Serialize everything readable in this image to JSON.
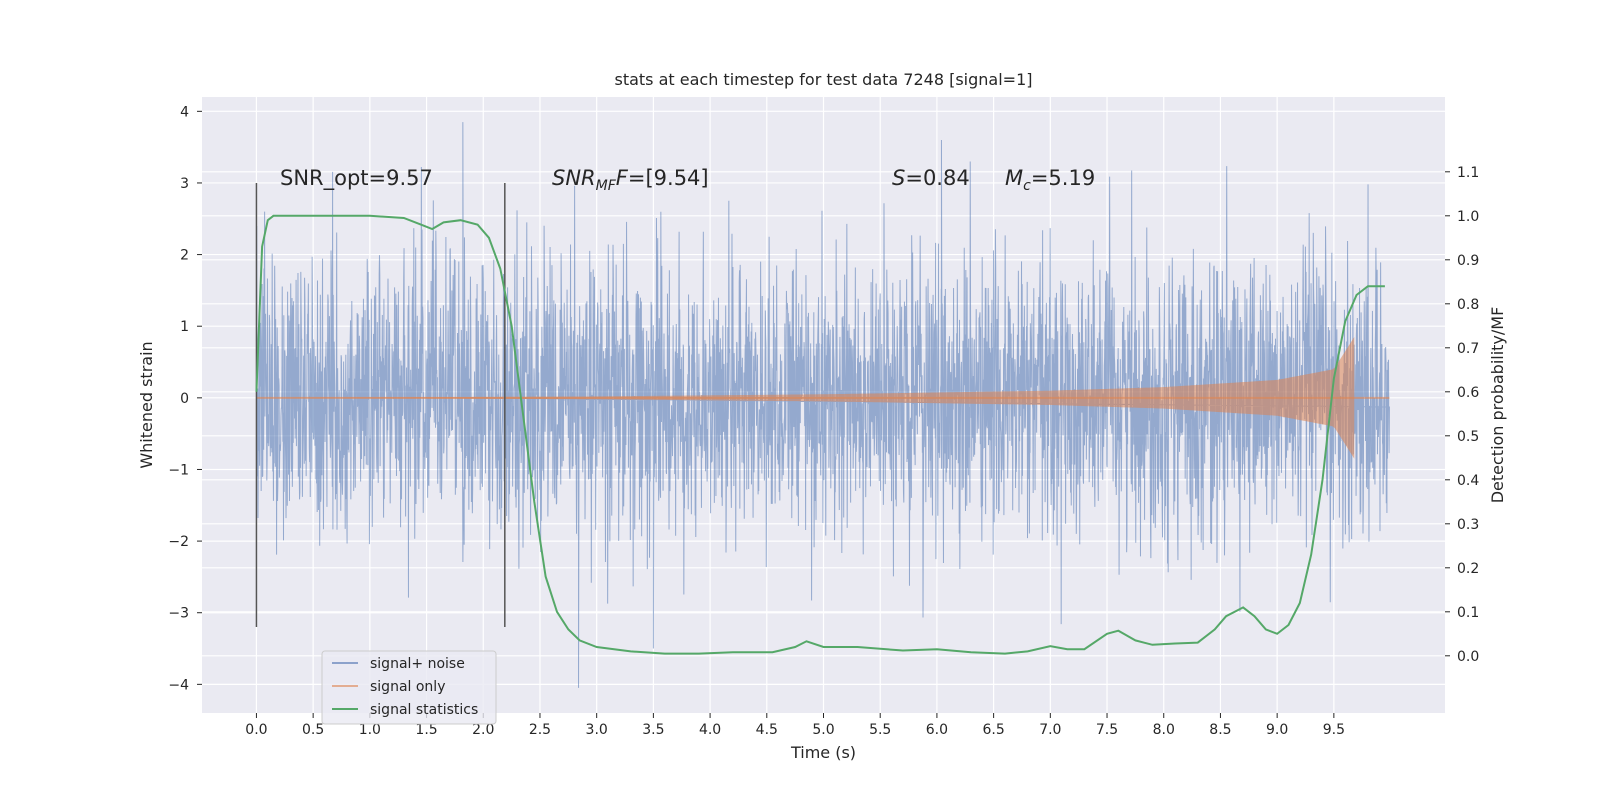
{
  "chart_data": {
    "type": "line",
    "title": "stats at each timestep for test data 7248 [signal=1]",
    "xlabel": "Time (s)",
    "ylabel": "Whitened strain",
    "y2label": "Detection probability/MF",
    "xlim": [
      -0.48,
      10.48
    ],
    "ylim": [
      -4.4,
      4.2
    ],
    "y2lim": [
      -0.13,
      1.27
    ],
    "x_ticks": [
      "0.0",
      "0.5",
      "1.0",
      "1.5",
      "2.0",
      "2.5",
      "3.0",
      "3.5",
      "4.0",
      "4.5",
      "5.0",
      "5.5",
      "6.0",
      "6.5",
      "7.0",
      "7.5",
      "8.0",
      "8.5",
      "9.0",
      "9.5"
    ],
    "y_ticks": [
      "−4",
      "−3",
      "−2",
      "−1",
      "0",
      "1",
      "2",
      "3",
      "4"
    ],
    "y2_ticks": [
      "0.0",
      "0.1",
      "0.2",
      "0.3",
      "0.4",
      "0.5",
      "0.6",
      "0.7",
      "0.8",
      "0.9",
      "1.0",
      "1.1"
    ],
    "grid": true,
    "legend_placement": "lower-left",
    "window_lines_x": [
      0.0,
      2.19
    ],
    "window_lines_ylim": [
      -3.2,
      3.0
    ],
    "annotations": {
      "snr_opt": "SNR_opt=9.57",
      "snr_mf": "SNR_MF=[9.54]",
      "s_value": "S=0.84",
      "mc_value": "M_c=5.19"
    },
    "series": [
      {
        "name": "signal+ noise",
        "color": "#4c72b0",
        "x_range": [
          0.0,
          9.99
        ],
        "envelope_typical": 1.3,
        "extremes": [
          {
            "x": 1.82,
            "y": 3.85
          },
          {
            "x": 2.84,
            "y": -4.05
          },
          {
            "x": 3.5,
            "y": -3.5
          },
          {
            "x": 6.04,
            "y": 3.6
          }
        ]
      },
      {
        "name": "signal only",
        "color": "#dd8452",
        "x_range": [
          0.0,
          9.68
        ],
        "amplitude": {
          "x": [
            0.0,
            3.0,
            5.0,
            7.0,
            8.0,
            9.0,
            9.5,
            9.68
          ],
          "y": [
            0.0,
            0.02,
            0.05,
            0.1,
            0.15,
            0.25,
            0.4,
            0.85
          ]
        }
      },
      {
        "name": "signal statistics",
        "color": "#55a868",
        "x": [
          0.0,
          0.05,
          0.1,
          0.15,
          0.3,
          0.6,
          1.0,
          1.3,
          1.45,
          1.55,
          1.65,
          1.8,
          1.95,
          2.05,
          2.15,
          2.25,
          2.35,
          2.45,
          2.55,
          2.65,
          2.75,
          2.85,
          3.0,
          3.3,
          3.6,
          3.9,
          4.2,
          4.55,
          4.75,
          4.85,
          5.0,
          5.3,
          5.7,
          6.0,
          6.3,
          6.6,
          6.8,
          7.0,
          7.15,
          7.3,
          7.5,
          7.6,
          7.75,
          7.9,
          8.1,
          8.3,
          8.45,
          8.55,
          8.7,
          8.8,
          8.9,
          9.0,
          9.1,
          9.2,
          9.3,
          9.4,
          9.5,
          9.6,
          9.7,
          9.8,
          9.95
        ],
        "y": [
          0.6,
          0.93,
          0.99,
          1.0,
          1.0,
          1.0,
          1.0,
          0.995,
          0.98,
          0.97,
          0.985,
          0.99,
          0.98,
          0.95,
          0.88,
          0.75,
          0.55,
          0.35,
          0.18,
          0.1,
          0.06,
          0.035,
          0.02,
          0.01,
          0.005,
          0.005,
          0.008,
          0.008,
          0.02,
          0.033,
          0.02,
          0.02,
          0.012,
          0.015,
          0.008,
          0.005,
          0.01,
          0.022,
          0.015,
          0.015,
          0.05,
          0.057,
          0.035,
          0.025,
          0.028,
          0.03,
          0.06,
          0.09,
          0.11,
          0.09,
          0.06,
          0.05,
          0.07,
          0.12,
          0.23,
          0.4,
          0.63,
          0.76,
          0.82,
          0.84,
          0.84
        ]
      }
    ]
  }
}
